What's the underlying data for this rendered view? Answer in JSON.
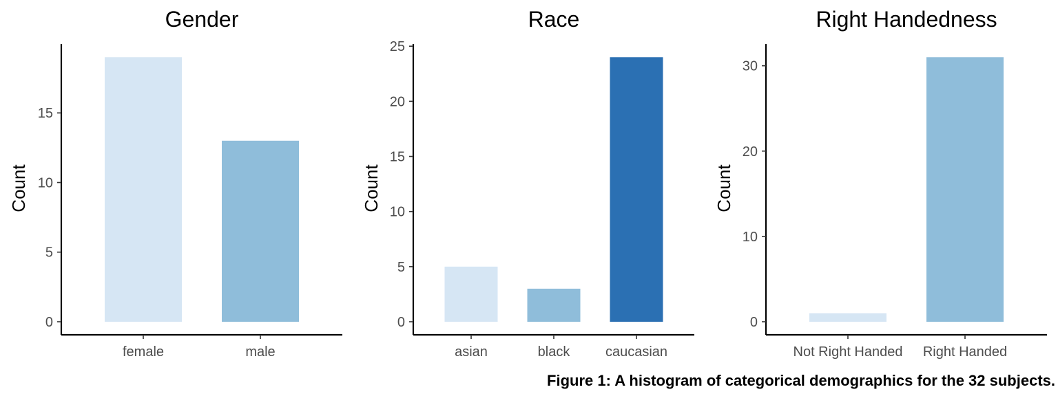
{
  "caption": "Figure 1: A histogram of categorical demographics for the 32 subjects.",
  "chart_data": [
    {
      "type": "bar",
      "title": "Gender",
      "xlabel": "",
      "ylabel": "Count",
      "categories": [
        "female",
        "male"
      ],
      "values": [
        19,
        13
      ],
      "colors": [
        "#d6e6f4",
        "#8fbdda"
      ],
      "ylim": [
        0,
        19.95
      ],
      "yticks": [
        0,
        5,
        10,
        15
      ],
      "grid": false
    },
    {
      "type": "bar",
      "title": "Race",
      "xlabel": "",
      "ylabel": "Count",
      "categories": [
        "asian",
        "black",
        "caucasian"
      ],
      "values": [
        5,
        3,
        24
      ],
      "colors": [
        "#d6e6f4",
        "#8fbdda",
        "#2b70b3"
      ],
      "ylim": [
        0,
        25.2
      ],
      "yticks": [
        0,
        5,
        10,
        15,
        20,
        25
      ],
      "grid": false
    },
    {
      "type": "bar",
      "title": "Right Handedness",
      "xlabel": "",
      "ylabel": "Count",
      "categories": [
        "Not Right Handed",
        "Right Handed"
      ],
      "values": [
        1,
        31
      ],
      "colors": [
        "#d6e6f4",
        "#8fbdda"
      ],
      "ylim": [
        0,
        32.55
      ],
      "yticks": [
        0,
        10,
        20,
        30
      ],
      "grid": false
    }
  ]
}
